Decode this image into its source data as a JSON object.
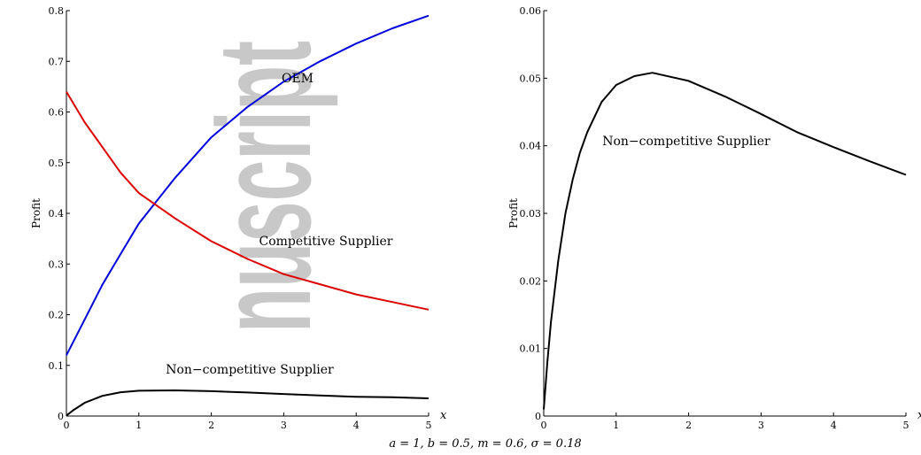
{
  "watermark": "nuscript",
  "caption": "a = 1, b = 0.5, m = 0.6, σ = 0.18",
  "colors": {
    "oem": "#0000dd",
    "competitive": "#dd0000",
    "noncompetitive": "#000000",
    "watermark": "#c8c8c8"
  },
  "chart_data": [
    {
      "type": "line",
      "xlabel": "x",
      "ylabel": "Profit",
      "xlim": [
        0,
        5
      ],
      "ylim": [
        0,
        0.8
      ],
      "xticks": [
        "0",
        "1",
        "2",
        "3",
        "4",
        "5"
      ],
      "yticks": [
        "0",
        "0.1",
        "0.2",
        "0.3",
        "0.4",
        "0.5",
        "0.6",
        "0.7",
        "0.8"
      ],
      "grid": false,
      "series": [
        {
          "name": "OEM",
          "x": [
            0,
            0.25,
            0.5,
            0.75,
            1,
            1.5,
            2,
            2.5,
            3,
            3.5,
            4,
            4.5,
            5
          ],
          "y": [
            0.12,
            0.19,
            0.26,
            0.32,
            0.38,
            0.47,
            0.55,
            0.61,
            0.66,
            0.7,
            0.735,
            0.765,
            0.79
          ]
        },
        {
          "name": "Competitive Supplier",
          "x": [
            0,
            0.25,
            0.5,
            0.75,
            1,
            1.5,
            2,
            2.5,
            3,
            3.5,
            4,
            4.5,
            5
          ],
          "y": [
            0.64,
            0.58,
            0.53,
            0.48,
            0.44,
            0.39,
            0.345,
            0.31,
            0.28,
            0.26,
            0.24,
            0.225,
            0.21
          ]
        },
        {
          "name": "Non−competitive Supplier",
          "x": [
            0,
            0.1,
            0.25,
            0.5,
            0.75,
            1,
            1.5,
            2,
            2.5,
            3,
            3.5,
            4,
            4.5,
            5
          ],
          "y": [
            0.001,
            0.012,
            0.026,
            0.04,
            0.047,
            0.05,
            0.0507,
            0.049,
            0.0465,
            0.0435,
            0.0405,
            0.038,
            0.037,
            0.035
          ]
        }
      ]
    },
    {
      "type": "line",
      "xlabel": "x",
      "ylabel": "Profit",
      "xlim": [
        0,
        5
      ],
      "ylim": [
        0,
        0.06
      ],
      "xticks": [
        "0",
        "1",
        "2",
        "3",
        "4",
        "5"
      ],
      "yticks": [
        "0",
        "0.01",
        "0.02",
        "0.03",
        "0.04",
        "0.05",
        "0.06"
      ],
      "grid": false,
      "series": [
        {
          "name": "Non−competitive Supplier",
          "x": [
            0,
            0.05,
            0.1,
            0.2,
            0.3,
            0.4,
            0.5,
            0.6,
            0.8,
            1,
            1.25,
            1.5,
            2,
            2.5,
            3,
            3.5,
            4,
            4.5,
            5
          ],
          "y": [
            0.001,
            0.008,
            0.014,
            0.023,
            0.03,
            0.035,
            0.039,
            0.042,
            0.0465,
            0.049,
            0.0503,
            0.0508,
            0.0496,
            0.0473,
            0.0447,
            0.042,
            0.0398,
            0.0377,
            0.0357
          ]
        }
      ]
    }
  ]
}
